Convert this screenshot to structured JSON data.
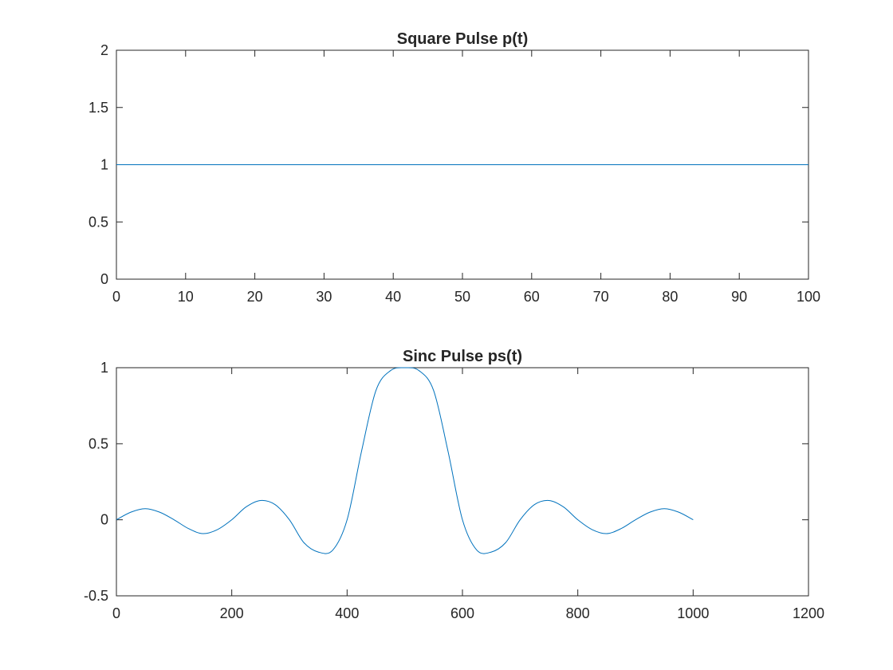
{
  "chart_data": [
    {
      "type": "line",
      "title": "Square Pulse p(t)",
      "xlabel": "",
      "ylabel": "",
      "xlim": [
        0,
        100
      ],
      "ylim": [
        0,
        2
      ],
      "xticks": [
        0,
        10,
        20,
        30,
        40,
        50,
        60,
        70,
        80,
        90,
        100
      ],
      "yticks": [
        0,
        0.5,
        1,
        1.5,
        2
      ],
      "xtick_labels": [
        "0",
        "10",
        "20",
        "30",
        "40",
        "50",
        "60",
        "70",
        "80",
        "90",
        "100"
      ],
      "ytick_labels": [
        "0",
        "0.5",
        "1",
        "1.5",
        "2"
      ],
      "grid": false,
      "series": [
        {
          "x": [
            0,
            100
          ],
          "y": [
            1,
            1
          ],
          "color": "#0072BD"
        }
      ]
    },
    {
      "type": "line",
      "title": "Sinc Pulse ps(t)",
      "xlabel": "",
      "ylabel": "",
      "xlim": [
        0,
        1200
      ],
      "ylim": [
        -0.5,
        1
      ],
      "xticks": [
        0,
        200,
        400,
        600,
        800,
        1000,
        1200
      ],
      "yticks": [
        -0.5,
        0,
        0.5,
        1
      ],
      "xtick_labels": [
        "0",
        "200",
        "400",
        "600",
        "800",
        "1000",
        "1200"
      ],
      "ytick_labels": [
        "-0.5",
        "0",
        "0.5",
        "1"
      ],
      "grid": false,
      "series": [
        {
          "color": "#0072BD",
          "x": [
            0,
            25,
            50,
            75,
            100,
            125,
            150,
            175,
            200,
            225,
            250,
            275,
            300,
            325,
            350,
            375,
            400,
            425,
            450,
            475,
            500,
            525,
            550,
            575,
            600,
            625,
            650,
            675,
            700,
            725,
            750,
            775,
            800,
            825,
            850,
            875,
            900,
            925,
            950,
            975,
            1000
          ],
          "y": [
            0,
            0.05,
            0.073,
            0.05,
            0,
            -0.058,
            -0.091,
            -0.065,
            0,
            0.085,
            0.127,
            0.1,
            0,
            -0.15,
            -0.212,
            -0.2,
            0,
            0.45,
            0.85,
            0.98,
            1,
            0.98,
            0.85,
            0.45,
            0,
            -0.2,
            -0.212,
            -0.15,
            0,
            0.1,
            0.127,
            0.085,
            0,
            -0.065,
            -0.091,
            -0.058,
            0,
            0.05,
            0.073,
            0.05,
            0
          ]
        }
      ]
    }
  ]
}
